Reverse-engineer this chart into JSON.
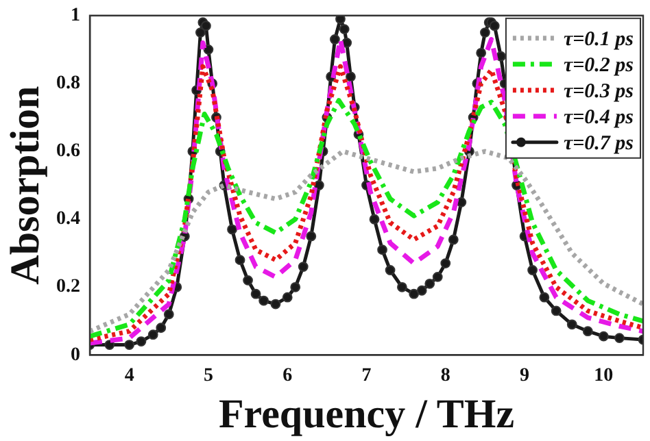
{
  "chart_data": {
    "type": "line",
    "xlabel": "Frequency / THz",
    "ylabel": "Absorption",
    "xlim": [
      3.5,
      10.5
    ],
    "xticks": [
      4,
      5,
      6,
      7,
      8,
      9,
      10
    ],
    "ylim": [
      0,
      1
    ],
    "yticks": [
      0,
      0.2,
      0.4,
      0.6,
      0.8,
      1
    ],
    "grid": false,
    "legend": "top right",
    "series": [
      {
        "name": "τ=0.1 ps",
        "color": "#a6a6a6",
        "line_style": "dotted",
        "marker": "none",
        "x": [
          3.5,
          4,
          4.5,
          4.8,
          5.0,
          5.2,
          5.5,
          5.85,
          6.1,
          6.3,
          6.7,
          7.0,
          7.3,
          7.6,
          7.9,
          8.2,
          8.5,
          8.8,
          9.0,
          9.2,
          9.6,
          10,
          10.5
        ],
        "values": [
          0.07,
          0.12,
          0.25,
          0.42,
          0.48,
          0.5,
          0.48,
          0.46,
          0.48,
          0.53,
          0.6,
          0.58,
          0.56,
          0.54,
          0.55,
          0.58,
          0.6,
          0.58,
          0.52,
          0.45,
          0.3,
          0.21,
          0.15
        ]
      },
      {
        "name": "τ=0.2 ps",
        "color": "#19e619",
        "line_style": "dashdot",
        "marker": "none",
        "x": [
          3.5,
          4,
          4.5,
          4.7,
          4.8,
          4.95,
          5.1,
          5.25,
          5.4,
          5.6,
          5.85,
          6.1,
          6.3,
          6.5,
          6.65,
          6.85,
          7.05,
          7.3,
          7.6,
          7.9,
          8.1,
          8.3,
          8.45,
          8.58,
          8.75,
          8.9,
          9.1,
          9.4,
          9.8,
          10.2,
          10.5
        ],
        "values": [
          0.055,
          0.09,
          0.22,
          0.4,
          0.55,
          0.71,
          0.65,
          0.55,
          0.47,
          0.39,
          0.36,
          0.4,
          0.51,
          0.68,
          0.75,
          0.68,
          0.57,
          0.46,
          0.41,
          0.45,
          0.53,
          0.66,
          0.73,
          0.745,
          0.68,
          0.56,
          0.39,
          0.25,
          0.16,
          0.12,
          0.1
        ]
      },
      {
        "name": "τ=0.3 ps",
        "color": "#e61919",
        "line_style": "dotted",
        "marker": "none",
        "x": [
          3.5,
          4,
          4.5,
          4.7,
          4.8,
          4.93,
          5.05,
          5.2,
          5.4,
          5.6,
          5.85,
          6.1,
          6.3,
          6.5,
          6.67,
          6.85,
          7.05,
          7.3,
          7.6,
          7.9,
          8.1,
          8.3,
          8.45,
          8.58,
          8.75,
          8.9,
          9.1,
          9.4,
          9.8,
          10.2,
          10.5
        ],
        "values": [
          0.045,
          0.07,
          0.18,
          0.38,
          0.56,
          0.85,
          0.78,
          0.58,
          0.41,
          0.31,
          0.28,
          0.33,
          0.47,
          0.72,
          0.85,
          0.72,
          0.53,
          0.39,
          0.34,
          0.38,
          0.48,
          0.65,
          0.8,
          0.84,
          0.72,
          0.52,
          0.33,
          0.2,
          0.13,
          0.1,
          0.08
        ]
      },
      {
        "name": "τ=0.4 ps",
        "color": "#e619e6",
        "line_style": "dashed",
        "marker": "none",
        "x": [
          3.5,
          4,
          4.5,
          4.7,
          4.8,
          4.93,
          5.05,
          5.2,
          5.4,
          5.6,
          5.85,
          6.1,
          6.3,
          6.5,
          6.67,
          6.85,
          7.05,
          7.3,
          7.6,
          7.9,
          8.1,
          8.3,
          8.45,
          8.58,
          8.75,
          8.9,
          9.1,
          9.4,
          9.8,
          10.2,
          10.5
        ],
        "values": [
          0.035,
          0.05,
          0.15,
          0.35,
          0.55,
          0.92,
          0.8,
          0.55,
          0.36,
          0.26,
          0.23,
          0.28,
          0.42,
          0.72,
          0.93,
          0.72,
          0.48,
          0.33,
          0.27,
          0.32,
          0.42,
          0.62,
          0.85,
          0.93,
          0.75,
          0.5,
          0.3,
          0.17,
          0.11,
          0.085,
          0.07
        ]
      },
      {
        "name": "τ=0.7 ps",
        "color": "#1a1a1a",
        "line_style": "solid",
        "marker": "circle",
        "x": [
          3.5,
          3.75,
          4,
          4.15,
          4.3,
          4.4,
          4.5,
          4.6,
          4.7,
          4.75,
          4.8,
          4.85,
          4.9,
          4.93,
          4.97,
          5.0,
          5.05,
          5.1,
          5.15,
          5.2,
          5.3,
          5.4,
          5.5,
          5.6,
          5.7,
          5.85,
          6.0,
          6.1,
          6.2,
          6.3,
          6.4,
          6.45,
          6.5,
          6.55,
          6.6,
          6.67,
          6.72,
          6.75,
          6.8,
          6.85,
          6.9,
          7.0,
          7.1,
          7.2,
          7.3,
          7.45,
          7.6,
          7.7,
          7.8,
          7.9,
          8.0,
          8.1,
          8.2,
          8.3,
          8.35,
          8.4,
          8.45,
          8.5,
          8.55,
          8.58,
          8.62,
          8.7,
          8.75,
          8.8,
          8.9,
          9.0,
          9.1,
          9.25,
          9.4,
          9.6,
          9.8,
          10.0,
          10.2,
          10.5
        ],
        "values": [
          0.03,
          0.03,
          0.03,
          0.04,
          0.06,
          0.08,
          0.12,
          0.2,
          0.35,
          0.46,
          0.6,
          0.78,
          0.95,
          0.98,
          0.97,
          0.9,
          0.8,
          0.7,
          0.6,
          0.5,
          0.37,
          0.28,
          0.22,
          0.18,
          0.16,
          0.15,
          0.17,
          0.2,
          0.26,
          0.35,
          0.5,
          0.6,
          0.7,
          0.82,
          0.93,
          0.99,
          0.96,
          0.92,
          0.82,
          0.73,
          0.65,
          0.5,
          0.4,
          0.31,
          0.25,
          0.2,
          0.18,
          0.19,
          0.21,
          0.23,
          0.27,
          0.34,
          0.45,
          0.6,
          0.7,
          0.8,
          0.89,
          0.95,
          0.98,
          0.98,
          0.97,
          0.88,
          0.8,
          0.7,
          0.5,
          0.35,
          0.25,
          0.17,
          0.13,
          0.09,
          0.07,
          0.055,
          0.05,
          0.045
        ]
      }
    ]
  }
}
